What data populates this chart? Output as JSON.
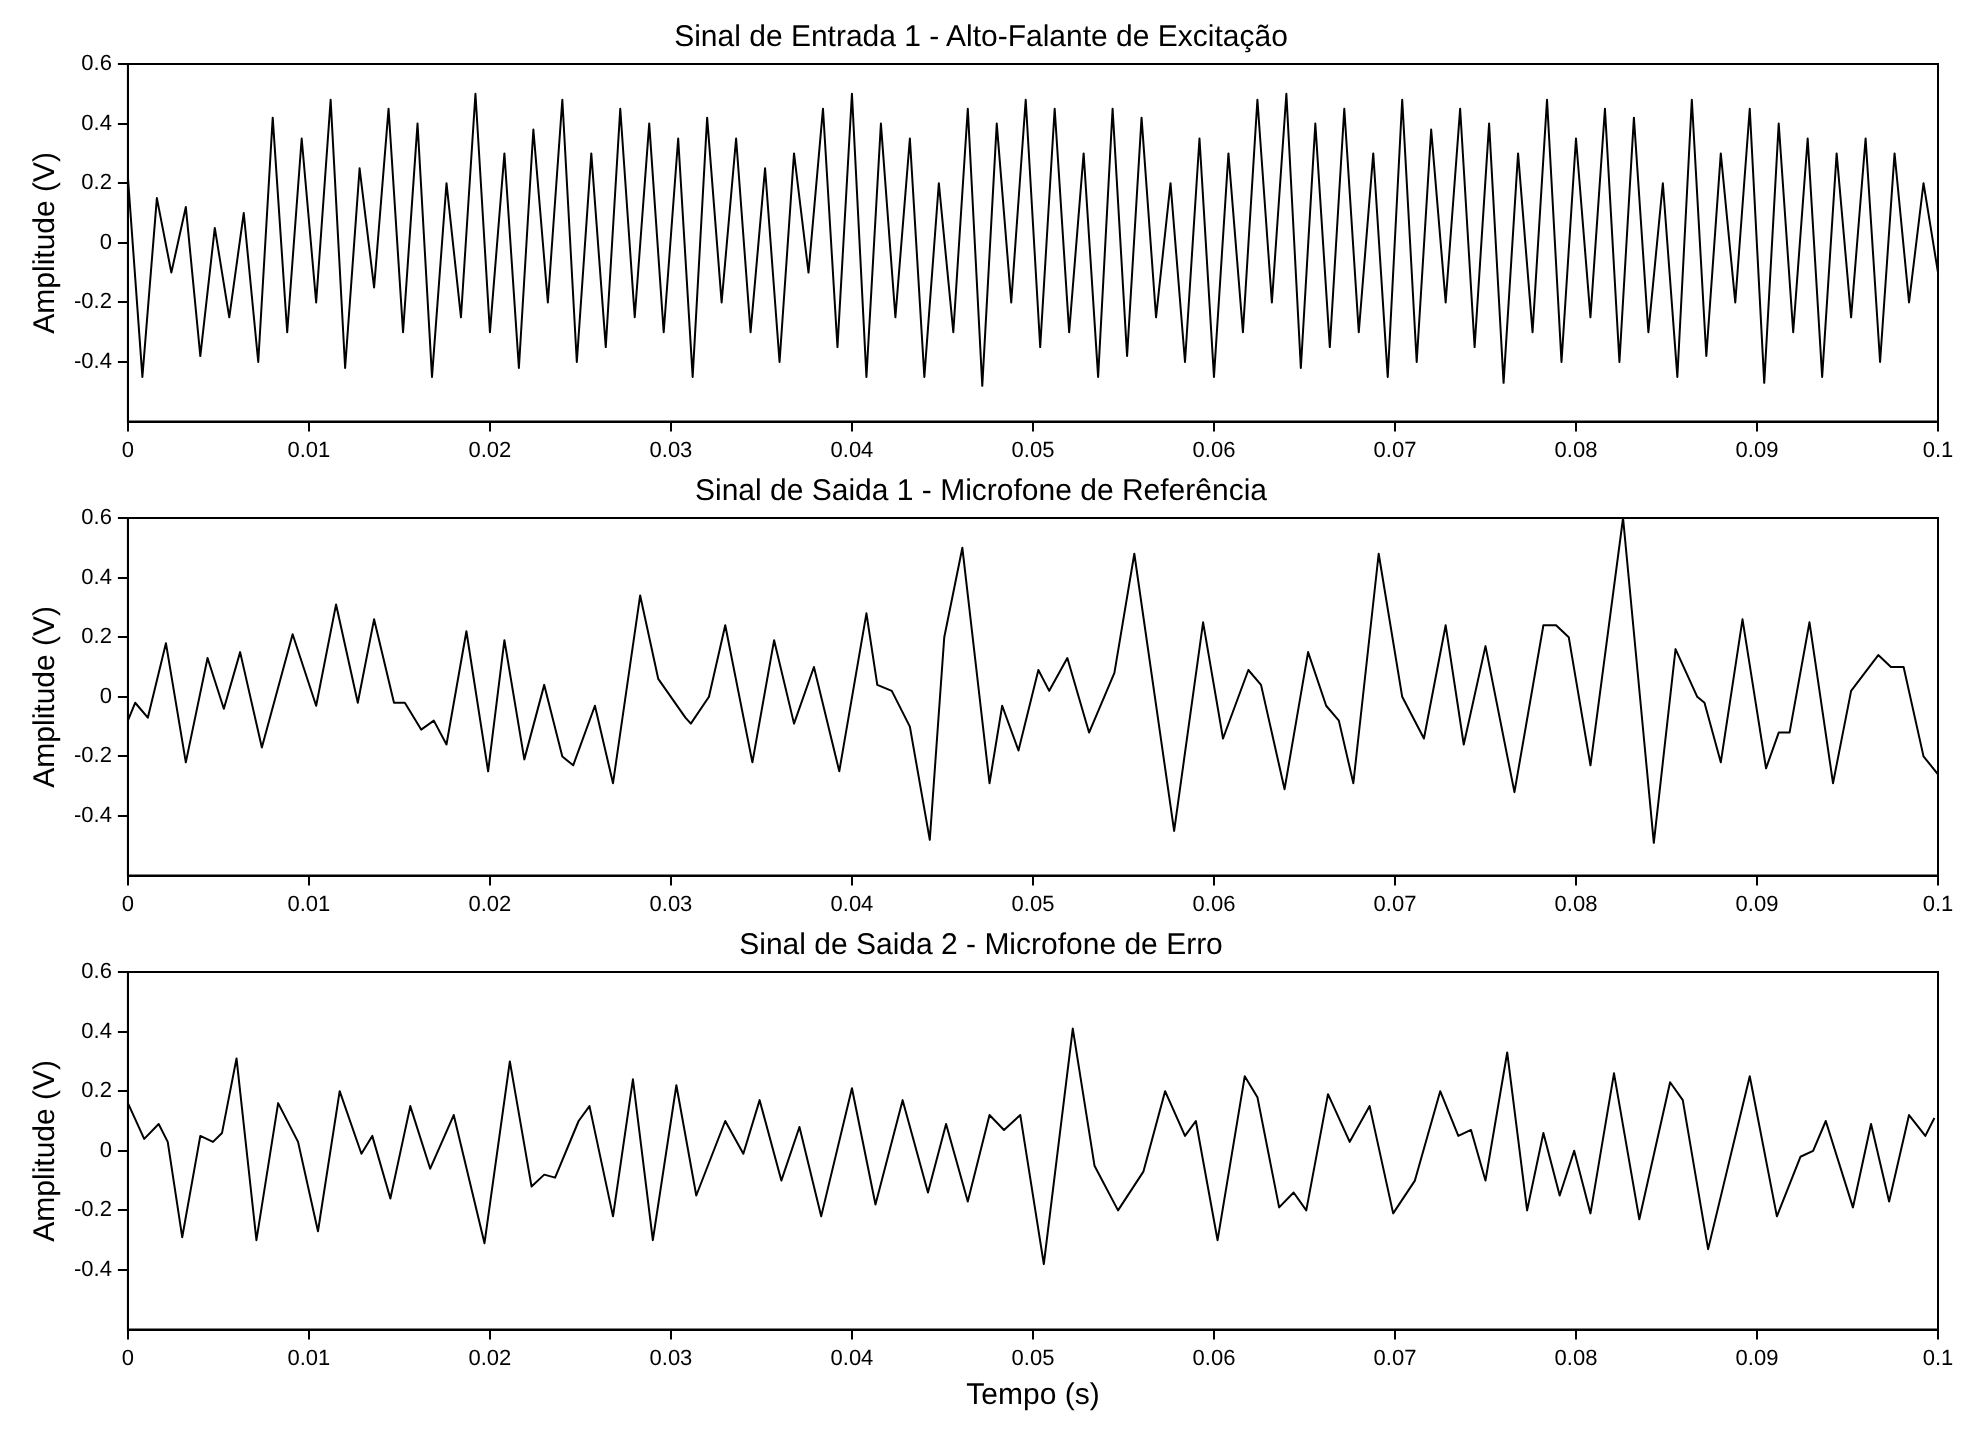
{
  "chart_data": [
    {
      "type": "line",
      "title": "Sinal de Entrada 1 - Alto-Falante de Excitação",
      "ylabel": "Amplitude (V)",
      "marker": "none",
      "xlim": [
        0,
        0.1
      ],
      "xticks": [
        0,
        0.01,
        0.02,
        0.03,
        0.04,
        0.05,
        0.06,
        0.07,
        0.08,
        0.09,
        0.1
      ],
      "ylim": [
        -0.6,
        0.6
      ],
      "yticks": [
        -0.4,
        -0.2,
        0,
        0.2,
        0.4,
        0.6
      ],
      "x": [
        0,
        0.0008,
        0.0016,
        0.0024,
        0.0032,
        0.004,
        0.0048,
        0.0056,
        0.0064,
        0.0072,
        0.008,
        0.0088,
        0.0096,
        0.0104,
        0.0112,
        0.012,
        0.0128,
        0.0136,
        0.0144,
        0.0152,
        0.016,
        0.0168,
        0.0176,
        0.0184,
        0.0192,
        0.02,
        0.0208,
        0.0216,
        0.0224,
        0.0232,
        0.024,
        0.0248,
        0.0256,
        0.0264,
        0.0272,
        0.028,
        0.0288,
        0.0296,
        0.0304,
        0.0312,
        0.032,
        0.0328,
        0.0336,
        0.0344,
        0.0352,
        0.036,
        0.0368,
        0.0376,
        0.0384,
        0.0392,
        0.04,
        0.0408,
        0.0416,
        0.0424,
        0.0432,
        0.044,
        0.0448,
        0.0456,
        0.0464,
        0.0472,
        0.048,
        0.0488,
        0.0496,
        0.0504,
        0.0512,
        0.052,
        0.0528,
        0.0536,
        0.0544,
        0.0552,
        0.056,
        0.0568,
        0.0576,
        0.0584,
        0.0592,
        0.06,
        0.0608,
        0.0616,
        0.0624,
        0.0632,
        0.064,
        0.0648,
        0.0656,
        0.0664,
        0.0672,
        0.068,
        0.0688,
        0.0696,
        0.0704,
        0.0712,
        0.072,
        0.0728,
        0.0736,
        0.0744,
        0.0752,
        0.076,
        0.0768,
        0.0776,
        0.0784,
        0.0792,
        0.08,
        0.0808,
        0.0816,
        0.0824,
        0.0832,
        0.084,
        0.0848,
        0.0856,
        0.0864,
        0.0872,
        0.088,
        0.0888,
        0.0896,
        0.0904,
        0.0912,
        0.092,
        0.0928,
        0.0936,
        0.0944,
        0.0952,
        0.096,
        0.0968,
        0.0976,
        0.0984,
        0.0992,
        0.1
      ],
      "series": [
        {
          "color": "#000000",
          "values": [
            0.22,
            -0.45,
            0.15,
            -0.1,
            0.12,
            -0.38,
            0.05,
            -0.25,
            0.1,
            -0.4,
            0.42,
            -0.3,
            0.35,
            -0.2,
            0.48,
            -0.42,
            0.25,
            -0.15,
            0.45,
            -0.3,
            0.4,
            -0.45,
            0.2,
            -0.25,
            0.5,
            -0.3,
            0.3,
            -0.42,
            0.38,
            -0.2,
            0.48,
            -0.4,
            0.3,
            -0.35,
            0.45,
            -0.25,
            0.4,
            -0.3,
            0.35,
            -0.45,
            0.42,
            -0.2,
            0.35,
            -0.3,
            0.25,
            -0.4,
            0.3,
            -0.1,
            0.45,
            -0.35,
            0.5,
            -0.45,
            0.4,
            -0.25,
            0.35,
            -0.45,
            0.2,
            -0.3,
            0.45,
            -0.48,
            0.4,
            -0.2,
            0.48,
            -0.35,
            0.45,
            -0.3,
            0.3,
            -0.45,
            0.45,
            -0.38,
            0.42,
            -0.25,
            0.2,
            -0.4,
            0.35,
            -0.45,
            0.3,
            -0.3,
            0.48,
            -0.2,
            0.5,
            -0.42,
            0.4,
            -0.35,
            0.45,
            -0.3,
            0.3,
            -0.45,
            0.48,
            -0.4,
            0.38,
            -0.2,
            0.45,
            -0.35,
            0.4,
            -0.47,
            0.3,
            -0.3,
            0.48,
            -0.4,
            0.35,
            -0.25,
            0.45,
            -0.4,
            0.42,
            -0.3,
            0.2,
            -0.45,
            0.48,
            -0.38,
            0.3,
            -0.2,
            0.45,
            -0.47,
            0.4,
            -0.3,
            0.35,
            -0.45,
            0.3,
            -0.25,
            0.35,
            -0.4,
            0.3,
            -0.2,
            0.2,
            -0.1
          ]
        }
      ]
    },
    {
      "type": "line",
      "title": "Sinal de Saida 1 - Microfone de Referência",
      "ylabel": "Amplitude (V)",
      "marker": "none",
      "xlim": [
        0,
        0.1
      ],
      "xticks": [
        0,
        0.01,
        0.02,
        0.03,
        0.04,
        0.05,
        0.06,
        0.07,
        0.08,
        0.09,
        0.1
      ],
      "ylim": [
        -0.6,
        0.6
      ],
      "yticks": [
        -0.4,
        -0.2,
        0,
        0.2,
        0.4,
        0.6
      ],
      "x": [
        0,
        0.0004,
        0.0011,
        0.0021,
        0.0032,
        0.0044,
        0.0053,
        0.0062,
        0.0074,
        0.0091,
        0.0104,
        0.0115,
        0.0127,
        0.0136,
        0.0147,
        0.0153,
        0.0162,
        0.0169,
        0.0176,
        0.0187,
        0.0199,
        0.0208,
        0.0219,
        0.023,
        0.024,
        0.0246,
        0.0258,
        0.0268,
        0.0283,
        0.0293,
        0.0308,
        0.0311,
        0.0321,
        0.033,
        0.0345,
        0.0357,
        0.0368,
        0.0379,
        0.0393,
        0.0408,
        0.0414,
        0.0422,
        0.0432,
        0.0443,
        0.0451,
        0.0461,
        0.0476,
        0.0483,
        0.0492,
        0.0503,
        0.0509,
        0.0519,
        0.0531,
        0.0545,
        0.0556,
        0.0578,
        0.0594,
        0.0605,
        0.0619,
        0.0626,
        0.0639,
        0.0652,
        0.0662,
        0.0669,
        0.0677,
        0.0691,
        0.0704,
        0.0716,
        0.0728,
        0.0738,
        0.075,
        0.0766,
        0.0782,
        0.0789,
        0.0796,
        0.0808,
        0.0826,
        0.0843,
        0.0855,
        0.0867,
        0.0871,
        0.088,
        0.0892,
        0.0905,
        0.0912,
        0.0918,
        0.0929,
        0.0942,
        0.0952,
        0.0967,
        0.0974,
        0.0981,
        0.0992,
        0.1
      ],
      "series": [
        {
          "color": "#000000",
          "values": [
            -0.08,
            -0.02,
            -0.07,
            0.18,
            -0.22,
            0.13,
            -0.04,
            0.15,
            -0.17,
            0.21,
            -0.03,
            0.31,
            -0.02,
            0.26,
            -0.02,
            -0.02,
            -0.11,
            -0.08,
            -0.16,
            0.22,
            -0.25,
            0.19,
            -0.21,
            0.04,
            -0.2,
            -0.23,
            -0.03,
            -0.29,
            0.34,
            0.06,
            -0.07,
            -0.09,
            0,
            0.24,
            -0.22,
            0.19,
            -0.09,
            0.1,
            -0.25,
            0.28,
            0.04,
            0.02,
            -0.1,
            -0.48,
            0.2,
            0.5,
            -0.29,
            -0.03,
            -0.18,
            0.09,
            0.02,
            0.13,
            -0.12,
            0.08,
            0.48,
            -0.45,
            0.25,
            -0.14,
            0.09,
            0.04,
            -0.31,
            0.15,
            -0.03,
            -0.08,
            -0.29,
            0.48,
            0,
            -0.14,
            0.24,
            -0.16,
            0.17,
            -0.32,
            0.24,
            0.24,
            0.2,
            -0.23,
            0.6,
            -0.49,
            0.16,
            0,
            -0.02,
            -0.22,
            0.26,
            -0.24,
            -0.12,
            -0.12,
            0.25,
            -0.29,
            0.02,
            0.14,
            0.1,
            0.1,
            -0.2,
            -0.26
          ]
        }
      ]
    },
    {
      "type": "line",
      "title": "Sinal de Saida 2 - Microfone de Erro",
      "xlabel": "Tempo (s)",
      "ylabel": "Amplitude (V)",
      "marker": "none",
      "xlim": [
        0,
        0.1
      ],
      "xticks": [
        0,
        0.01,
        0.02,
        0.03,
        0.04,
        0.05,
        0.06,
        0.07,
        0.08,
        0.09,
        0.1
      ],
      "ylim": [
        -0.6,
        0.6
      ],
      "yticks": [
        -0.4,
        -0.2,
        0,
        0.2,
        0.4,
        0.6
      ],
      "x": [
        0,
        0.0009,
        0.0017,
        0.0022,
        0.003,
        0.004,
        0.0047,
        0.0052,
        0.006,
        0.0071,
        0.0083,
        0.0094,
        0.0105,
        0.0117,
        0.0129,
        0.0135,
        0.0145,
        0.0156,
        0.0167,
        0.018,
        0.0197,
        0.0211,
        0.0223,
        0.023,
        0.0236,
        0.0249,
        0.0255,
        0.0268,
        0.0279,
        0.029,
        0.0303,
        0.0314,
        0.033,
        0.034,
        0.0349,
        0.0361,
        0.0371,
        0.0383,
        0.04,
        0.0413,
        0.0428,
        0.0442,
        0.0452,
        0.0464,
        0.0476,
        0.0484,
        0.0493,
        0.0506,
        0.0522,
        0.0534,
        0.0547,
        0.0561,
        0.0573,
        0.0584,
        0.059,
        0.0602,
        0.0617,
        0.0624,
        0.0636,
        0.0644,
        0.0651,
        0.0663,
        0.0675,
        0.0686,
        0.0699,
        0.0711,
        0.0725,
        0.0735,
        0.0742,
        0.075,
        0.0762,
        0.0773,
        0.0782,
        0.0791,
        0.0799,
        0.0808,
        0.0821,
        0.0835,
        0.0852,
        0.0859,
        0.0873,
        0.0896,
        0.0911,
        0.0924,
        0.0931,
        0.0938,
        0.0953,
        0.0963,
        0.0973,
        0.0984,
        0.0993,
        0.0998
      ],
      "series": [
        {
          "color": "#000000",
          "values": [
            0.16,
            0.04,
            0.09,
            0.03,
            -0.29,
            0.05,
            0.03,
            0.06,
            0.31,
            -0.3,
            0.16,
            0.03,
            -0.27,
            0.2,
            -0.01,
            0.05,
            -0.16,
            0.15,
            -0.06,
            0.12,
            -0.31,
            0.3,
            -0.12,
            -0.08,
            -0.09,
            0.1,
            0.15,
            -0.22,
            0.24,
            -0.3,
            0.22,
            -0.15,
            0.1,
            -0.01,
            0.17,
            -0.1,
            0.08,
            -0.22,
            0.21,
            -0.18,
            0.17,
            -0.14,
            0.09,
            -0.17,
            0.12,
            0.07,
            0.12,
            -0.38,
            0.41,
            -0.05,
            -0.2,
            -0.07,
            0.2,
            0.05,
            0.1,
            -0.3,
            0.25,
            0.18,
            -0.19,
            -0.14,
            -0.2,
            0.19,
            0.03,
            0.15,
            -0.21,
            -0.1,
            0.2,
            0.05,
            0.07,
            -0.1,
            0.33,
            -0.2,
            0.06,
            -0.15,
            0,
            -0.21,
            0.26,
            -0.23,
            0.23,
            0.17,
            -0.33,
            0.25,
            -0.22,
            -0.02,
            0,
            0.1,
            -0.19,
            0.09,
            -0.17,
            0.12,
            0.05,
            0.11
          ]
        }
      ]
    }
  ]
}
